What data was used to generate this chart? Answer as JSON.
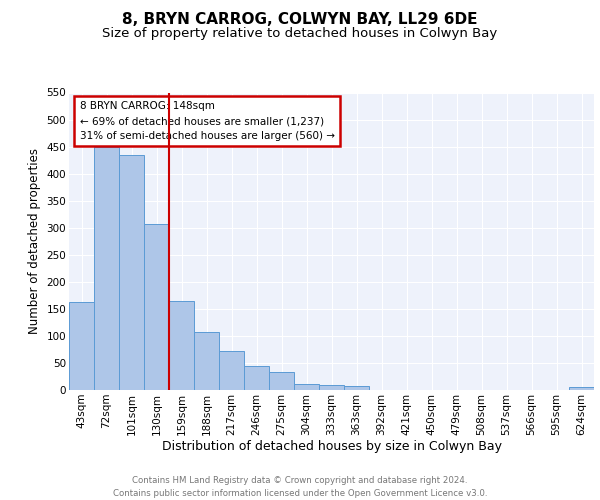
{
  "title1": "8, BRYN CARROG, COLWYN BAY, LL29 6DE",
  "title2": "Size of property relative to detached houses in Colwyn Bay",
  "xlabel": "Distribution of detached houses by size in Colwyn Bay",
  "ylabel": "Number of detached properties",
  "bar_labels": [
    "43sqm",
    "72sqm",
    "101sqm",
    "130sqm",
    "159sqm",
    "188sqm",
    "217sqm",
    "246sqm",
    "275sqm",
    "304sqm",
    "333sqm",
    "363sqm",
    "392sqm",
    "421sqm",
    "450sqm",
    "479sqm",
    "508sqm",
    "537sqm",
    "566sqm",
    "595sqm",
    "624sqm"
  ],
  "bar_values": [
    163,
    450,
    435,
    307,
    165,
    107,
    72,
    44,
    33,
    11,
    10,
    8,
    0,
    0,
    0,
    0,
    0,
    0,
    0,
    0,
    5
  ],
  "bar_color": "#aec6e8",
  "bar_edge_color": "#5b9bd5",
  "vline_x": 3.5,
  "vline_color": "#cc0000",
  "annotation_text": "8 BRYN CARROG: 148sqm\n← 69% of detached houses are smaller (1,237)\n31% of semi-detached houses are larger (560) →",
  "annotation_box_color": "#cc0000",
  "ylim": [
    0,
    550
  ],
  "yticks": [
    0,
    50,
    100,
    150,
    200,
    250,
    300,
    350,
    400,
    450,
    500,
    550
  ],
  "background_color": "#eef2fb",
  "footer_text": "Contains HM Land Registry data © Crown copyright and database right 2024.\nContains public sector information licensed under the Open Government Licence v3.0.",
  "title1_fontsize": 11,
  "title2_fontsize": 9.5,
  "xlabel_fontsize": 9,
  "ylabel_fontsize": 8.5,
  "tick_fontsize": 7.5,
  "footer_fontsize": 6.2
}
